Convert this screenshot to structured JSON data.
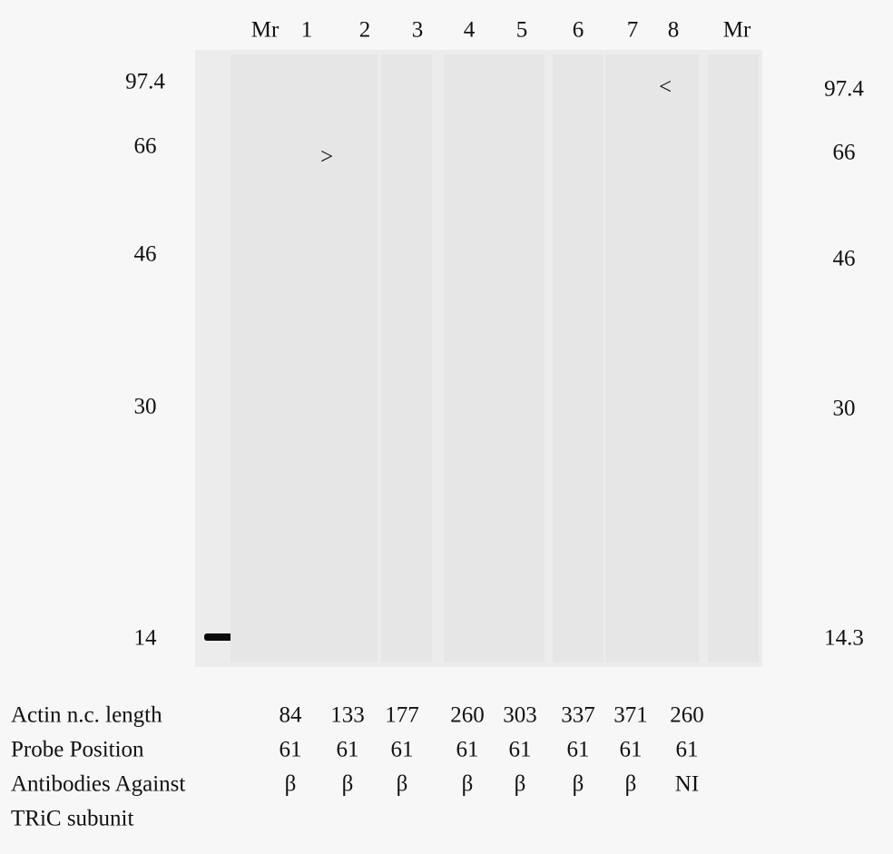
{
  "lanes": [
    "Mr",
    "1",
    "2",
    "3",
    "4",
    "5",
    "6",
    "7",
    "8",
    "Mr"
  ],
  "left_markers": [
    "97.4",
    "66",
    "46",
    "30",
    "14"
  ],
  "right_markers": [
    "97.4",
    "66",
    "46",
    "30",
    "14.3"
  ],
  "arrows": [
    ">",
    "<"
  ],
  "table": {
    "rows": [
      {
        "label": [
          "Actin n.c. length"
        ],
        "values": [
          "84",
          "133",
          "177",
          "260",
          "303",
          "337",
          "371",
          "260"
        ]
      },
      {
        "label": [
          "Probe Position"
        ],
        "values": [
          "61",
          "61",
          "61",
          "61",
          "61",
          "61",
          "61",
          "61"
        ]
      },
      {
        "label": [
          "Antibodies Against",
          "TRiC subunit"
        ],
        "values": [
          "β",
          "β",
          "β",
          "β",
          "β",
          "β",
          "β",
          "NI"
        ]
      }
    ]
  }
}
